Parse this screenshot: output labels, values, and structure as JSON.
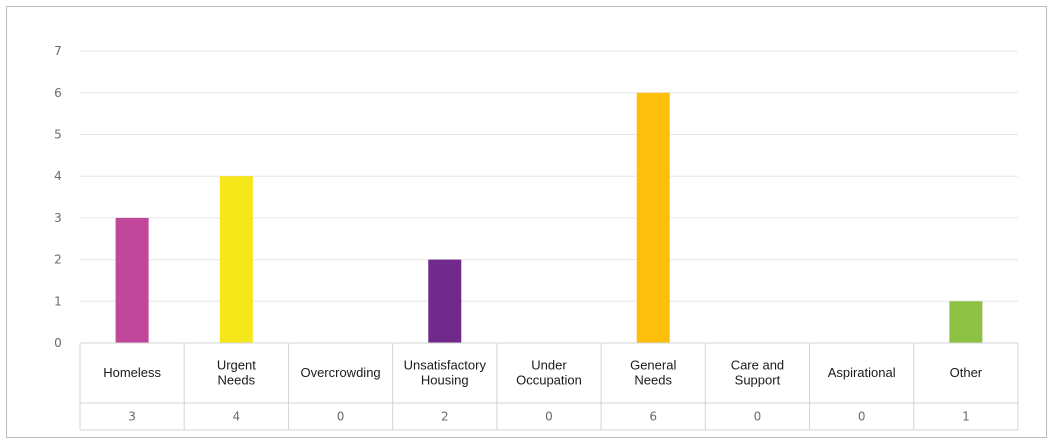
{
  "chart_data": {
    "type": "bar",
    "title": "",
    "xlabel": "",
    "ylabel": "",
    "ylim": [
      0,
      7
    ],
    "yticks": [
      0,
      1,
      2,
      3,
      4,
      5,
      6,
      7
    ],
    "grid": true,
    "legend": "none",
    "categories": [
      [
        "Homeless"
      ],
      [
        "Urgent",
        "Needs"
      ],
      [
        "Overcrowding"
      ],
      [
        "Unsatisfactory",
        "Housing"
      ],
      [
        "Under",
        "Occupation"
      ],
      [
        "General",
        "Needs"
      ],
      [
        "Care and",
        "Support"
      ],
      [
        "Aspirational"
      ],
      [
        "Other"
      ]
    ],
    "values": [
      3,
      4,
      0,
      2,
      0,
      6,
      0,
      0,
      1
    ],
    "value_labels": [
      "3",
      "4",
      "0",
      "2",
      "0",
      "6",
      "0",
      "0",
      "1"
    ],
    "colors": [
      "#c0479a",
      "#f6e71a",
      "#f6e71a",
      "#6f2a8c",
      "#6f2a8c",
      "#fdbf0b",
      "#fdbf0b",
      "#fdbf0b",
      "#8dc144"
    ]
  }
}
